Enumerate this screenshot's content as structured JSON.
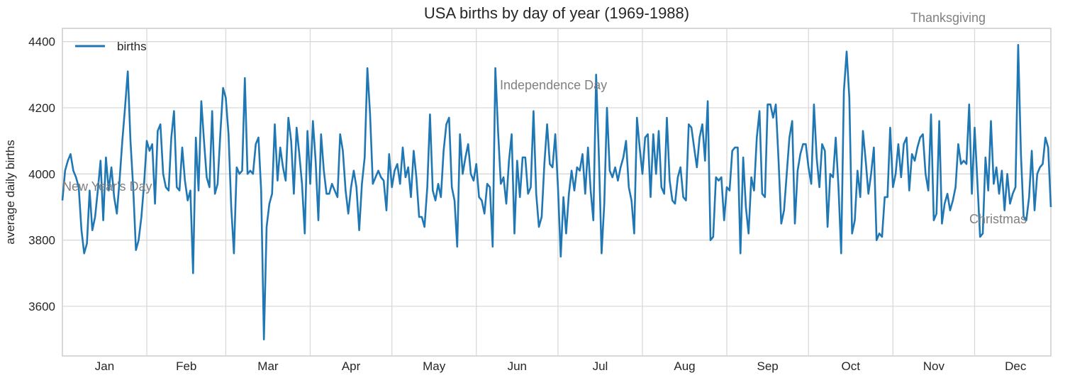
{
  "chart_data": {
    "type": "line",
    "title": "USA births by day of year (1969-1988)",
    "xlabel": "",
    "ylabel": "average daily births",
    "ylim": [
      3450,
      4440
    ],
    "yticks": [
      3600,
      3800,
      4000,
      4200,
      4400
    ],
    "grid": true,
    "legend_position": "top-left",
    "x_tick_labels": [
      "Jan",
      "Feb",
      "Mar",
      "Apr",
      "May",
      "Jun",
      "Jul",
      "Aug",
      "Sep",
      "Oct",
      "Nov",
      "Dec"
    ],
    "series": [
      {
        "name": "births",
        "color": "#1f77b4",
        "x_start": "Jan 1",
        "x_end": "Dec 31",
        "x_step": "1 day",
        "values": [
          3920,
          4010,
          4040,
          4060,
          4010,
          3990,
          3960,
          3830,
          3760,
          3790,
          3950,
          3830,
          3870,
          3950,
          4040,
          3860,
          4050,
          3950,
          4020,
          3930,
          3880,
          3980,
          4100,
          4200,
          4310,
          4100,
          3960,
          3770,
          3800,
          3870,
          3970,
          4100,
          4070,
          4090,
          3910,
          4130,
          4150,
          4000,
          3960,
          3950,
          4110,
          4190,
          3960,
          3950,
          4080,
          3980,
          3920,
          3950,
          3700,
          4110,
          3950,
          4220,
          4100,
          3990,
          3960,
          4190,
          3940,
          3970,
          4120,
          4260,
          4230,
          4120,
          3900,
          3760,
          4020,
          4000,
          4010,
          4290,
          4000,
          4010,
          4000,
          4090,
          4110,
          3950,
          3500,
          3840,
          3910,
          3940,
          4150,
          3980,
          4080,
          4020,
          3980,
          4170,
          4100,
          3940,
          4140,
          4060,
          3970,
          3820,
          4130,
          3970,
          4160,
          4040,
          3860,
          4120,
          4010,
          3940,
          3940,
          3970,
          3950,
          3930,
          4120,
          4070,
          3950,
          3880,
          3960,
          4010,
          3960,
          3830,
          3970,
          4050,
          4320,
          4180,
          3970,
          3990,
          4010,
          3990,
          3980,
          3890,
          4060,
          3960,
          4010,
          4030,
          3970,
          4080,
          3990,
          4020,
          3930,
          4070,
          3990,
          3870,
          3870,
          3840,
          3960,
          4180,
          3950,
          3920,
          3970,
          3930,
          4070,
          4150,
          4170,
          3960,
          3920,
          3780,
          4120,
          4000,
          4050,
          4090,
          4000,
          3980,
          4030,
          3930,
          3920,
          3880,
          3970,
          3960,
          3780,
          4320,
          4130,
          3970,
          3990,
          3910,
          4040,
          4120,
          3820,
          4040,
          3930,
          4050,
          4050,
          3940,
          3960,
          4190,
          3940,
          3840,
          3870,
          4030,
          4150,
          4030,
          4020,
          4120,
          3960,
          3750,
          3930,
          3820,
          3940,
          4010,
          3950,
          4020,
          4010,
          4060,
          3940,
          4080,
          3950,
          3860,
          4300,
          4060,
          3760,
          3910,
          4200,
          4010,
          3990,
          4020,
          3980,
          4020,
          4050,
          4100,
          3960,
          3920,
          3820,
          4170,
          4080,
          4000,
          4110,
          4120,
          3930,
          4120,
          4000,
          4130,
          3960,
          3940,
          4170,
          3980,
          3920,
          3910,
          3990,
          4020,
          3930,
          3920,
          4150,
          4140,
          4080,
          4020,
          4110,
          4150,
          4040,
          4220,
          3800,
          3810,
          3990,
          3980,
          3990,
          3860,
          3960,
          3950,
          4070,
          4080,
          4080,
          3760,
          4050,
          3900,
          3820,
          3990,
          3950,
          4110,
          4190,
          3940,
          3930,
          4210,
          4210,
          4170,
          4210,
          4040,
          3850,
          3890,
          4000,
          4110,
          4160,
          3850,
          4010,
          4060,
          4090,
          4090,
          4020,
          3970,
          4210,
          4050,
          3960,
          4090,
          4070,
          3840,
          4000,
          3990,
          4110,
          3960,
          3760,
          4250,
          4370,
          4230,
          3820,
          3860,
          4010,
          3930,
          4130,
          4040,
          3940,
          4000,
          4080,
          3800,
          3820,
          3810,
          3930,
          3930,
          4140,
          3960,
          4000,
          4090,
          3990,
          4090,
          4110,
          3950,
          4060,
          4040,
          4080,
          4110,
          4120,
          4000,
          3950,
          4180,
          3860,
          3880,
          4160,
          3850,
          3910,
          3940,
          3890,
          3920,
          3960,
          4090,
          4030,
          4040,
          4030,
          4210,
          3940,
          4140,
          3980,
          3810,
          3820,
          4050,
          3950,
          4160,
          3970,
          4020,
          3940,
          4010,
          3890,
          4000,
          3910,
          3940,
          3960,
          4390,
          4060,
          3870,
          3860,
          3930,
          4070,
          3890,
          4000,
          4020,
          4030,
          4110,
          4080,
          3900
        ]
      }
    ],
    "annotations": [
      {
        "text": "New Year's Day",
        "x_day": 1
      },
      {
        "text": "Independence Day",
        "x_day": 186
      },
      {
        "text": "Thanksgiving",
        "x_day": 328
      },
      {
        "text": "Christmas",
        "x_day": 359
      }
    ]
  }
}
